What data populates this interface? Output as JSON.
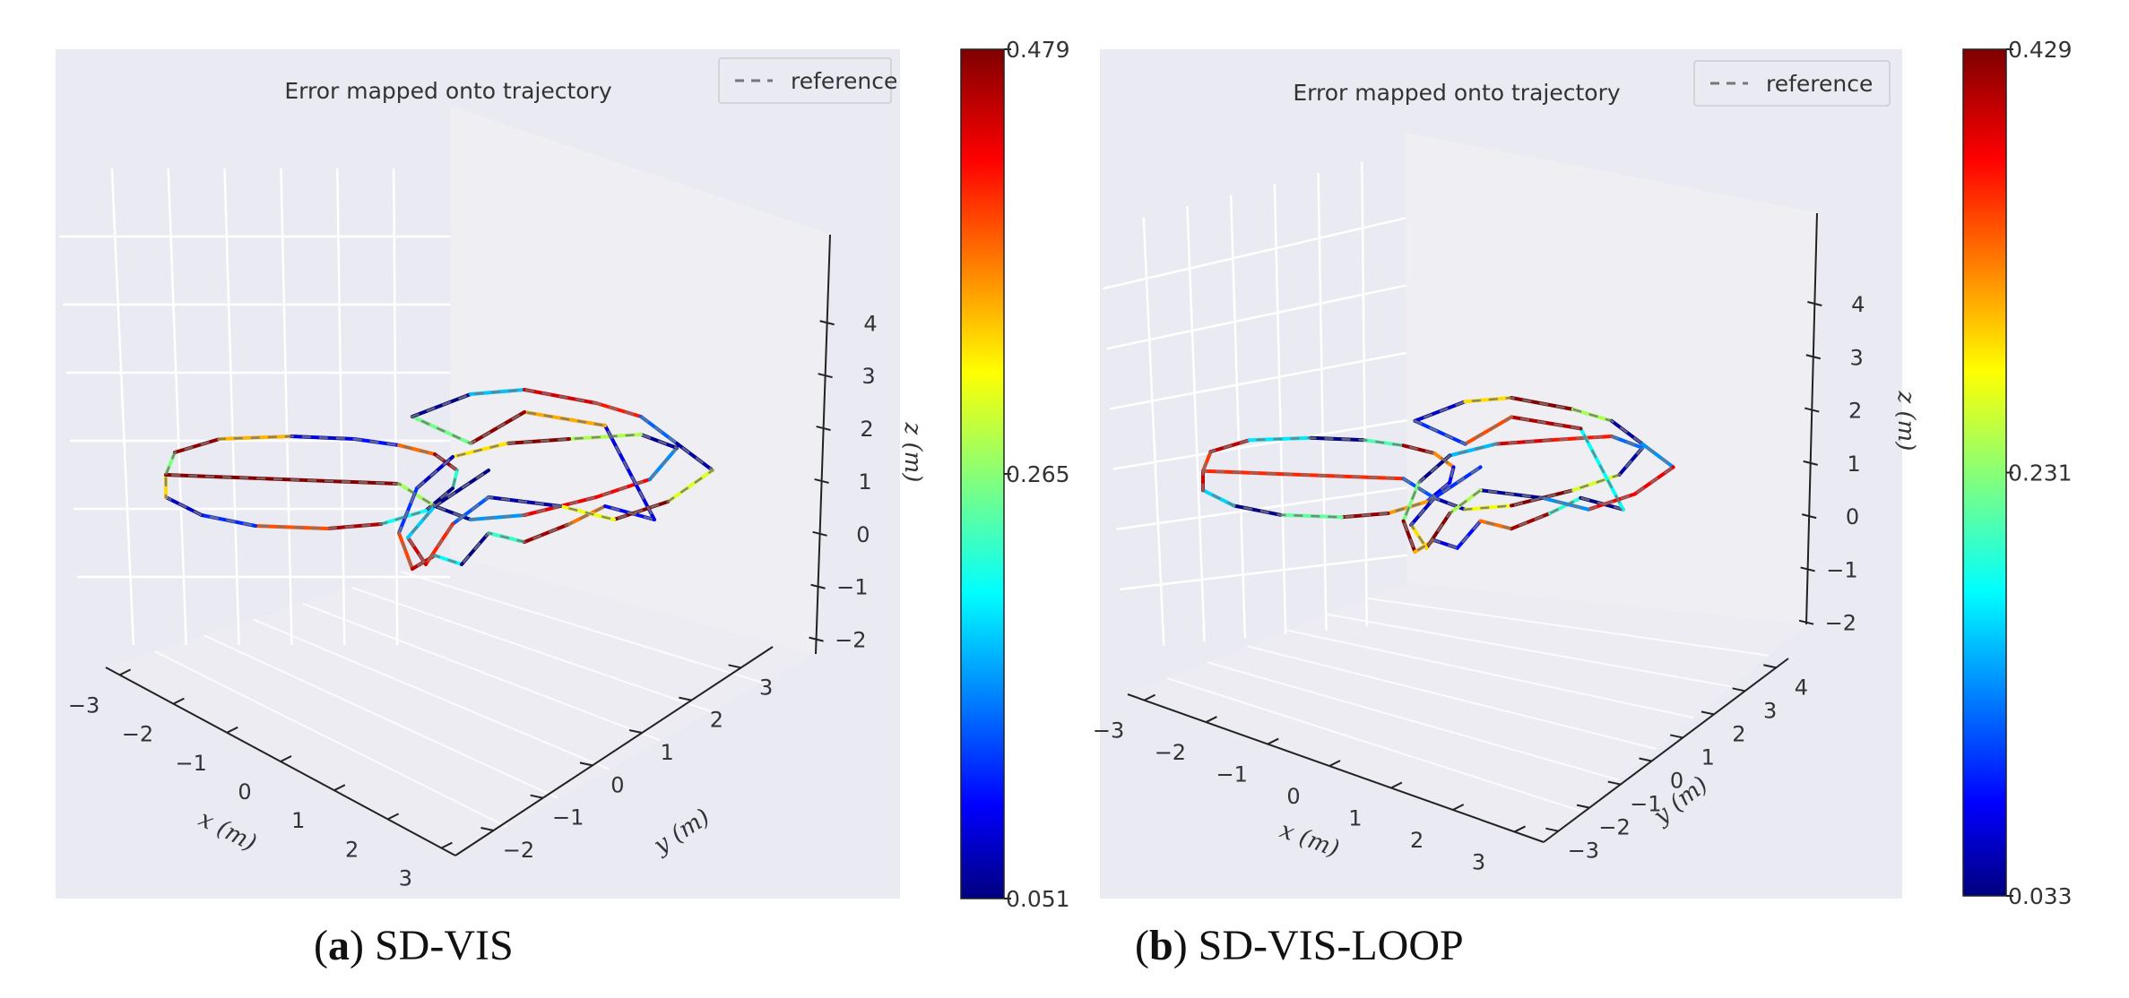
{
  "chart_data": [
    {
      "type": "line",
      "subtype": "3d-trajectory",
      "title": "Error mapped onto trajectory",
      "legend": {
        "entries": [
          "reference"
        ],
        "style": "dashed-gray",
        "placement": "top-right"
      },
      "caption": {
        "label": "a",
        "text": "SD-VIS"
      },
      "axes": {
        "x": {
          "label": "x (m)",
          "ticks": [
            "−3",
            "−2",
            "−1",
            "0",
            "1",
            "2",
            "3"
          ]
        },
        "y": {
          "label": "y (m)",
          "ticks": [
            "−2",
            "−1",
            "0",
            "1",
            "2",
            "3"
          ]
        },
        "z": {
          "label": "z (m)",
          "ticks": [
            "−2",
            "−1",
            "0",
            "1",
            "2",
            "3",
            "4"
          ]
        }
      },
      "colorbar": {
        "min": "0.051",
        "mid": "0.265",
        "max": "0.479",
        "colormap": "jet"
      }
    },
    {
      "type": "line",
      "subtype": "3d-trajectory",
      "title": "Error mapped onto trajectory",
      "legend": {
        "entries": [
          "reference"
        ],
        "style": "dashed-gray",
        "placement": "top-right"
      },
      "caption": {
        "label": "b",
        "text": "SD-VIS-LOOP"
      },
      "axes": {
        "x": {
          "label": "x (m)",
          "ticks": [
            "−3",
            "−2",
            "−1",
            "0",
            "1",
            "2",
            "3"
          ]
        },
        "y": {
          "label": "y (m)",
          "ticks": [
            "−3",
            "−2",
            "−1",
            "0",
            "1",
            "2",
            "3",
            "4"
          ]
        },
        "z": {
          "label": "z (m)",
          "ticks": [
            "−2",
            "−1",
            "0",
            "1",
            "2",
            "3",
            "4"
          ]
        }
      },
      "colorbar": {
        "min": "0.033",
        "mid": "0.231",
        "max": "0.429",
        "colormap": "jet"
      }
    }
  ],
  "colors": {
    "panel_bg": "#eaeaf2",
    "pane_light": "#eeeef3",
    "grid": "#ffffff",
    "reference": "#777777"
  }
}
